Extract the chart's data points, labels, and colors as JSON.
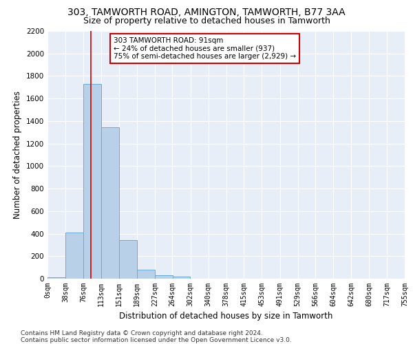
{
  "title": "303, TAMWORTH ROAD, AMINGTON, TAMWORTH, B77 3AA",
  "subtitle": "Size of property relative to detached houses in Tamworth",
  "xlabel": "Distribution of detached houses by size in Tamworth",
  "ylabel": "Number of detached properties",
  "bar_color": "#b8d0e8",
  "bar_edge_color": "#6aaad4",
  "background_color": "#e8eef8",
  "grid_color": "#ffffff",
  "annotation_text": "303 TAMWORTH ROAD: 91sqm\n← 24% of detached houses are smaller (937)\n75% of semi-detached houses are larger (2,929) →",
  "annotation_box_color": "#ffffff",
  "annotation_box_edge": "#cc0000",
  "vline_x": 91,
  "vline_color": "#cc0000",
  "bin_edges": [
    0,
    38,
    76,
    113,
    151,
    189,
    227,
    264,
    302,
    340,
    378,
    415,
    453,
    491,
    529,
    566,
    604,
    642,
    680,
    717,
    755
  ],
  "bin_counts": [
    15,
    410,
    1730,
    1345,
    340,
    80,
    30,
    20,
    0,
    0,
    0,
    0,
    0,
    0,
    0,
    0,
    0,
    0,
    0,
    0
  ],
  "tick_labels": [
    "0sqm",
    "38sqm",
    "76sqm",
    "113sqm",
    "151sqm",
    "189sqm",
    "227sqm",
    "264sqm",
    "302sqm",
    "340sqm",
    "378sqm",
    "415sqm",
    "453sqm",
    "491sqm",
    "529sqm",
    "566sqm",
    "604sqm",
    "642sqm",
    "680sqm",
    "717sqm",
    "755sqm"
  ],
  "ylim": [
    0,
    2200
  ],
  "xlim": [
    0,
    755
  ],
  "footer_text": "Contains HM Land Registry data © Crown copyright and database right 2024.\nContains public sector information licensed under the Open Government Licence v3.0.",
  "title_fontsize": 10,
  "subtitle_fontsize": 9,
  "axis_label_fontsize": 8.5,
  "tick_fontsize": 7,
  "footer_fontsize": 6.5,
  "annot_fontsize": 7.5
}
